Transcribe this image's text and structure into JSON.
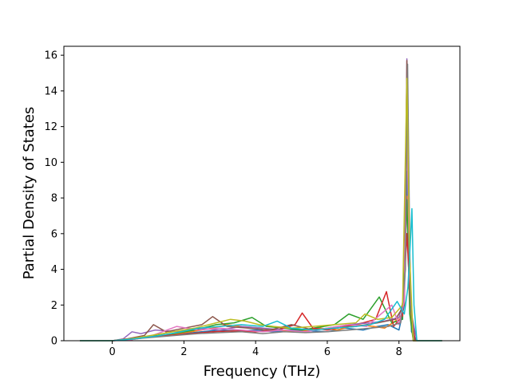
{
  "chart_data": {
    "type": "line",
    "xlabel": "Frequency (THz)",
    "ylabel": "Partial Density of States",
    "xlim": [
      -1.35,
      9.7
    ],
    "ylim": [
      0,
      16.5
    ],
    "xticks": [
      "0",
      "2",
      "4",
      "6",
      "8"
    ],
    "yticks": [
      "0",
      "2",
      "4",
      "6",
      "8",
      "10",
      "12",
      "14",
      "16"
    ],
    "grid": false,
    "legend": "none",
    "colors": [
      "#1f77b4",
      "#ff7f0e",
      "#2ca02c",
      "#d62728",
      "#9467bd",
      "#8c564b",
      "#e377c2",
      "#7f7f7f",
      "#bcbd22",
      "#17becf"
    ],
    "series": [
      {
        "color": "#1f77b4",
        "x": [
          -0.9,
          0.0,
          0.3,
          0.8,
          1.5,
          2.0,
          2.5,
          3.0,
          3.5,
          4.0,
          4.5,
          5.0,
          5.5,
          6.0,
          6.5,
          7.0,
          7.4,
          7.7,
          8.0,
          8.15,
          8.22,
          8.28,
          8.35,
          8.5,
          9.2
        ],
        "y": [
          0,
          0,
          0.05,
          0.15,
          0.3,
          0.4,
          0.5,
          0.6,
          0.55,
          0.6,
          0.5,
          0.6,
          0.55,
          0.5,
          0.7,
          0.6,
          0.8,
          0.9,
          0.6,
          2.0,
          9.5,
          4.0,
          0.5,
          0,
          0
        ]
      },
      {
        "color": "#ff7f0e",
        "x": [
          -0.9,
          0.0,
          0.4,
          1.0,
          1.6,
          2.2,
          2.8,
          3.2,
          3.6,
          4.2,
          4.6,
          5.2,
          5.8,
          6.3,
          6.8,
          7.3,
          7.6,
          7.9,
          8.1,
          8.22,
          8.3,
          8.4,
          9.2
        ],
        "y": [
          0,
          0,
          0.1,
          0.2,
          0.35,
          0.5,
          0.7,
          0.9,
          0.8,
          0.7,
          0.6,
          0.5,
          0.7,
          0.6,
          0.9,
          0.8,
          0.7,
          1.1,
          1.5,
          8.1,
          2.0,
          0,
          0
        ]
      },
      {
        "color": "#2ca02c",
        "x": [
          -0.9,
          0.0,
          0.5,
          1.1,
          1.7,
          2.3,
          2.9,
          3.4,
          3.9,
          4.3,
          4.8,
          5.3,
          5.9,
          6.2,
          6.6,
          7.0,
          7.45,
          7.8,
          8.1,
          8.22,
          8.3,
          8.4,
          9.2
        ],
        "y": [
          0,
          0,
          0.1,
          0.25,
          0.4,
          0.6,
          0.9,
          1.0,
          1.3,
          0.8,
          0.7,
          0.6,
          0.8,
          0.9,
          1.5,
          1.2,
          2.45,
          1.0,
          1.2,
          7.9,
          1.5,
          0,
          0
        ]
      },
      {
        "color": "#d62728",
        "x": [
          -0.9,
          0.0,
          0.5,
          1.0,
          1.6,
          2.2,
          2.8,
          3.4,
          4.0,
          4.6,
          5.1,
          5.3,
          5.6,
          6.0,
          6.5,
          7.0,
          7.35,
          7.65,
          7.85,
          8.1,
          8.22,
          8.32,
          8.45,
          9.2
        ],
        "y": [
          0,
          0,
          0.05,
          0.2,
          0.3,
          0.4,
          0.5,
          0.55,
          0.5,
          0.6,
          0.9,
          1.55,
          0.7,
          0.6,
          0.8,
          1.0,
          1.2,
          2.75,
          0.8,
          1.4,
          6.0,
          2.0,
          0,
          0
        ]
      },
      {
        "color": "#9467bd",
        "x": [
          -0.9,
          0.0,
          0.3,
          0.55,
          0.8,
          1.2,
          1.8,
          2.4,
          3.0,
          3.6,
          4.2,
          4.8,
          5.4,
          6.0,
          6.6,
          7.2,
          7.6,
          8.0,
          8.15,
          8.22,
          8.28,
          8.35,
          8.5,
          9.2
        ],
        "y": [
          0,
          0,
          0.1,
          0.5,
          0.4,
          0.6,
          0.5,
          0.7,
          0.6,
          0.8,
          0.7,
          0.6,
          0.5,
          0.7,
          0.9,
          1.0,
          1.1,
          1.3,
          2.5,
          15.8,
          6.0,
          1.5,
          0,
          0
        ]
      },
      {
        "color": "#8c564b",
        "x": [
          -0.9,
          0.0,
          0.4,
          0.9,
          1.15,
          1.5,
          2.0,
          2.5,
          2.8,
          3.2,
          3.8,
          4.4,
          5.0,
          5.6,
          6.2,
          6.8,
          7.4,
          7.9,
          8.15,
          8.22,
          8.3,
          8.42,
          9.2
        ],
        "y": [
          0,
          0,
          0.1,
          0.3,
          0.9,
          0.5,
          0.7,
          0.9,
          1.35,
          0.8,
          0.7,
          0.6,
          0.9,
          0.6,
          0.7,
          0.8,
          1.0,
          1.2,
          2.0,
          15.7,
          3.0,
          0,
          0
        ]
      },
      {
        "color": "#e377c2",
        "x": [
          -0.9,
          0.0,
          0.5,
          1.0,
          1.8,
          2.4,
          3.0,
          3.6,
          4.2,
          4.8,
          5.4,
          6.0,
          6.6,
          7.1,
          7.5,
          7.8,
          8.0,
          8.15,
          8.22,
          8.3,
          8.4,
          9.2
        ],
        "y": [
          0,
          0,
          0.05,
          0.2,
          0.8,
          0.6,
          0.7,
          0.6,
          0.5,
          0.6,
          0.5,
          0.7,
          0.9,
          0.8,
          1.5,
          2.0,
          0.9,
          2.2,
          12.0,
          3.5,
          0,
          0
        ]
      },
      {
        "color": "#7f7f7f",
        "x": [
          -0.9,
          0.0,
          0.6,
          1.2,
          1.8,
          2.4,
          3.0,
          3.6,
          4.2,
          4.8,
          5.4,
          6.0,
          6.6,
          7.2,
          7.7,
          8.05,
          8.18,
          8.24,
          8.32,
          8.42,
          9.2
        ],
        "y": [
          0,
          0,
          0.1,
          0.2,
          0.3,
          0.4,
          0.45,
          0.5,
          0.4,
          0.5,
          0.45,
          0.5,
          0.6,
          0.7,
          0.8,
          1.0,
          4.0,
          15.5,
          2.0,
          0,
          0
        ]
      },
      {
        "color": "#bcbd22",
        "x": [
          -0.9,
          0.0,
          0.5,
          1.1,
          1.7,
          2.3,
          2.9,
          3.3,
          3.7,
          4.1,
          4.5,
          5.0,
          5.6,
          6.2,
          6.8,
          7.05,
          7.4,
          7.8,
          8.1,
          8.22,
          8.3,
          8.4,
          9.2
        ],
        "y": [
          0,
          0,
          0.1,
          0.3,
          0.5,
          0.7,
          1.0,
          1.2,
          1.1,
          0.9,
          0.8,
          0.7,
          0.8,
          0.9,
          1.0,
          1.5,
          1.2,
          1.3,
          2.0,
          14.7,
          4.5,
          0,
          0
        ]
      },
      {
        "color": "#17becf",
        "x": [
          -0.9,
          0.0,
          0.6,
          1.2,
          1.8,
          2.4,
          3.0,
          3.6,
          4.2,
          4.6,
          5.0,
          5.6,
          6.2,
          6.8,
          7.2,
          7.6,
          7.95,
          8.15,
          8.25,
          8.33,
          8.36,
          8.42,
          8.5,
          9.2
        ],
        "y": [
          0,
          0,
          0.1,
          0.25,
          0.45,
          0.7,
          0.8,
          0.9,
          0.8,
          1.1,
          0.7,
          0.6,
          0.7,
          0.8,
          0.9,
          1.2,
          2.2,
          1.5,
          3.0,
          6.0,
          7.4,
          2.0,
          0,
          0
        ]
      }
    ]
  }
}
